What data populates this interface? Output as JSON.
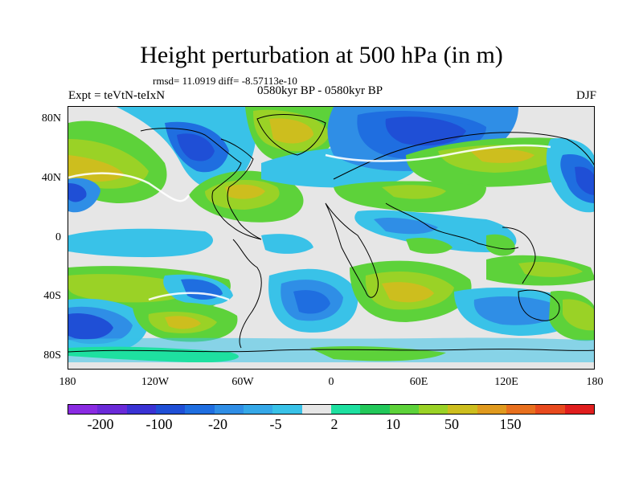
{
  "title": "Height perturbation at 500 hPa (in m)",
  "stats": "rmsd= 11.0919 diff= -8.57113e-10",
  "left_label": "Expt = teVtN-teIxN",
  "center_label": "0580kyr BP - 0580kyr BP",
  "right_label": "DJF",
  "lat_labels": [
    "80N",
    "40N",
    "0",
    "40S",
    "80S"
  ],
  "lon_labels": [
    "180",
    "120W",
    "60W",
    "0",
    "60E",
    "120E",
    "180"
  ],
  "colorbar": {
    "colors": [
      "#8a2be2",
      "#6a2ad8",
      "#3a32d4",
      "#1f4fd6",
      "#1f6ee0",
      "#2f8ee6",
      "#35a8e8",
      "#39c2e8",
      "#e6e6e6",
      "#1ee0a0",
      "#22c85a",
      "#5dd23a",
      "#9ad226",
      "#cdbe1e",
      "#e09a1e",
      "#e8701e",
      "#e84a1e",
      "#e01e1e"
    ],
    "labels": [
      "-200",
      "-100",
      "-20",
      "-5",
      "2",
      "10",
      "50",
      "150"
    ]
  }
}
